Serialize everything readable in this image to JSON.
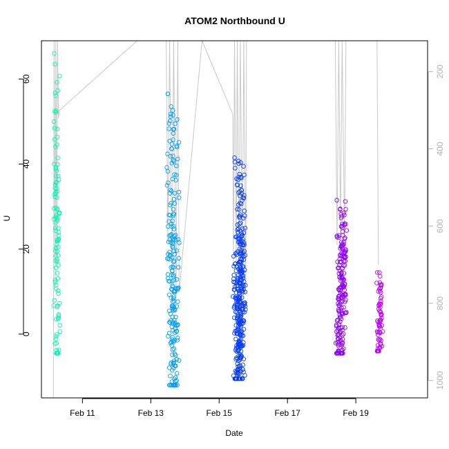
{
  "chart_data": {
    "type": "scatter",
    "title": "ATOM2 Northbound U",
    "xlabel": "Date",
    "ylabel": "U",
    "x_unit": "days since Feb 10 00:00",
    "xlim": [
      -0.2,
      11.1
    ],
    "ylim": [
      -15,
      69
    ],
    "x_ticks": [
      {
        "value": 1,
        "label": "Feb 11"
      },
      {
        "value": 3,
        "label": "Feb 13"
      },
      {
        "value": 5,
        "label": "Feb 15"
      },
      {
        "value": 7,
        "label": "Feb 17"
      },
      {
        "value": 9,
        "label": "Feb 19"
      }
    ],
    "y_ticks": [
      0,
      20,
      40,
      60
    ],
    "y2_axis": {
      "label": "",
      "lim": [
        1045,
        120
      ],
      "ticks": [
        200,
        400,
        600,
        800,
        1000
      ],
      "color": "#b3b3b3"
    },
    "color_scale": [
      "#00ffa0",
      "#00d0ff",
      "#0040ff",
      "#8000ff",
      "#ff00ff"
    ],
    "bursts": [
      {
        "name": "",
        "x_start": 0.15,
        "x_end": 0.35,
        "y_min": -4.5,
        "y_max": 66,
        "n": 110,
        "seed": 11
      },
      {
        "name": "",
        "x_start": 3.45,
        "x_end": 3.85,
        "y_min": -12,
        "y_max": 56.5,
        "n": 210,
        "seed": 23
      },
      {
        "name": "",
        "x_start": 5.4,
        "x_end": 5.8,
        "y_min": -10.5,
        "y_max": 41.5,
        "n": 360,
        "seed": 37
      },
      {
        "name": "",
        "x_start": 8.4,
        "x_end": 8.75,
        "y_min": -4.5,
        "y_max": 31.5,
        "n": 200,
        "seed": 51
      },
      {
        "name": "",
        "x_start": 9.6,
        "x_end": 9.8,
        "y_min": -4,
        "y_max": 14.5,
        "n": 70,
        "seed": 67
      }
    ],
    "depth_trace": [
      {
        "x": 0.15,
        "y": 1045
      },
      {
        "x": 0.17,
        "y": 120
      },
      {
        "x": 0.2,
        "y": 760
      },
      {
        "x": 0.22,
        "y": 120
      },
      {
        "x": 0.25,
        "y": 700
      },
      {
        "x": 0.27,
        "y": 120
      },
      {
        "x": 0.3,
        "y": 320
      },
      {
        "x": 0.33,
        "y": 300
      },
      {
        "x": 2.6,
        "y": 120
      },
      {
        "x": 3.45,
        "y": 120
      },
      {
        "x": 3.5,
        "y": 640
      },
      {
        "x": 3.55,
        "y": 120
      },
      {
        "x": 3.62,
        "y": 700
      },
      {
        "x": 3.67,
        "y": 120
      },
      {
        "x": 3.74,
        "y": 780
      },
      {
        "x": 3.79,
        "y": 120
      },
      {
        "x": 3.83,
        "y": 770
      },
      {
        "x": 4.5,
        "y": 120
      },
      {
        "x": 5.4,
        "y": 310
      },
      {
        "x": 5.42,
        "y": 690
      },
      {
        "x": 5.45,
        "y": 120
      },
      {
        "x": 5.5,
        "y": 700
      },
      {
        "x": 5.53,
        "y": 120
      },
      {
        "x": 5.58,
        "y": 680
      },
      {
        "x": 5.62,
        "y": 120
      },
      {
        "x": 5.68,
        "y": 720
      },
      {
        "x": 5.72,
        "y": 120
      },
      {
        "x": 5.78,
        "y": 740
      },
      {
        "x": 5.8,
        "y": 120
      },
      {
        "x": 8.4,
        "y": 120
      },
      {
        "x": 8.45,
        "y": 650
      },
      {
        "x": 8.5,
        "y": 120
      },
      {
        "x": 8.55,
        "y": 600
      },
      {
        "x": 8.6,
        "y": 120
      },
      {
        "x": 8.67,
        "y": 630
      },
      {
        "x": 8.71,
        "y": 120
      },
      {
        "x": 9.62,
        "y": 120
      },
      {
        "x": 9.66,
        "y": 700
      }
    ]
  }
}
